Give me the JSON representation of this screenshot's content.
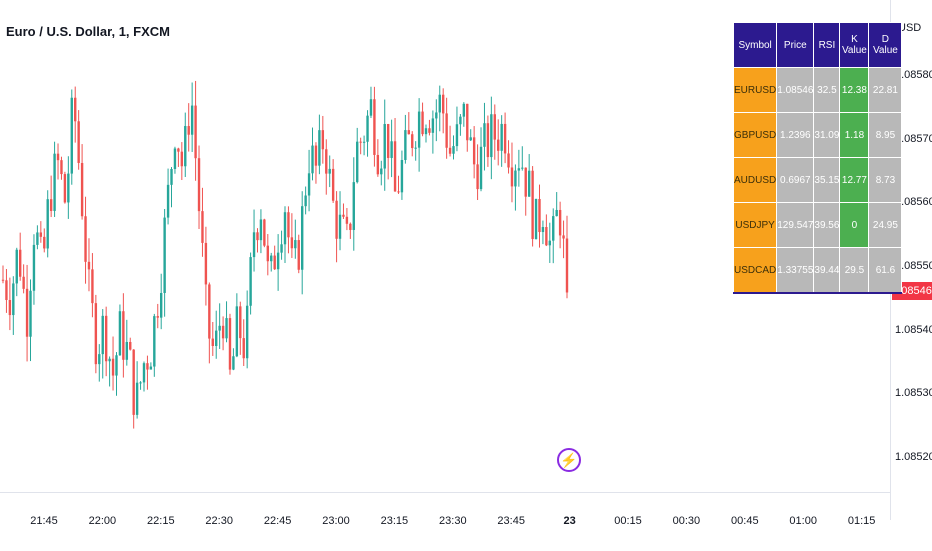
{
  "title": "Euro / U.S. Dollar, 1, FXCM",
  "colors": {
    "up": "#26a69a",
    "down": "#ef5350",
    "last_price": "#f23645",
    "table_header": "#2c1a8f",
    "symbol_cell": "#f7a11c",
    "value_cell": "#b8b8b8",
    "k_highlight": "#4caf50"
  },
  "icons": {
    "flash": "lightning-bolt-icon"
  },
  "chart_data": {
    "type": "candlestick",
    "yaxis_unit": "USD",
    "ylim": [
      1.08515,
      1.08585
    ],
    "yticks": [
      "1.08580",
      "1.08570",
      "1.08560",
      "1.08550",
      "1.08540",
      "1.08530",
      "1.08520"
    ],
    "last_price": "1.08546",
    "xticks": [
      {
        "label": "21:45",
        "bold": false
      },
      {
        "label": "22:00",
        "bold": false
      },
      {
        "label": "22:15",
        "bold": false
      },
      {
        "label": "22:30",
        "bold": false
      },
      {
        "label": "22:45",
        "bold": false
      },
      {
        "label": "23:00",
        "bold": false
      },
      {
        "label": "23:15",
        "bold": false
      },
      {
        "label": "23:30",
        "bold": false
      },
      {
        "label": "23:45",
        "bold": false
      },
      {
        "label": "23",
        "bold": true
      },
      {
        "label": "00:15",
        "bold": false
      },
      {
        "label": "00:30",
        "bold": false
      },
      {
        "label": "00:45",
        "bold": false
      },
      {
        "label": "01:00",
        "bold": false
      },
      {
        "label": "01:15",
        "bold": false
      }
    ],
    "close_path": [
      1.08548,
      1.08546,
      1.08553,
      1.08542,
      1.08557,
      1.08549,
      1.08562,
      1.08566,
      1.0856,
      1.08576,
      1.08562,
      1.08545,
      1.08538,
      1.08541,
      1.08533,
      1.0854,
      1.08536,
      1.08528,
      1.08535,
      1.08538,
      1.08548,
      1.0856,
      1.08573,
      1.08565,
      1.08578,
      1.0856,
      1.08541,
      1.08536,
      1.08544,
      1.08532,
      1.08541,
      1.08537,
      1.08556,
      1.0856,
      1.08546,
      1.08555,
      1.0856,
      1.08548,
      1.08555,
      1.08568,
      1.08565,
      1.08571,
      1.0856,
      1.08556,
      1.08553,
      1.08568,
      1.08571,
      1.08575,
      1.08568,
      1.08572,
      1.08561,
      1.08566,
      1.0857,
      1.08574,
      1.08575,
      1.08574,
      1.08576,
      1.08568,
      1.0857,
      1.08574,
      1.08566,
      1.08567,
      1.0857,
      1.08571,
      1.08572,
      1.08567,
      1.08568,
      1.08563,
      1.08556,
      1.0856,
      1.08552,
      1.0856,
      1.08546
    ],
    "candle_count": 165
  },
  "table": {
    "headers": [
      "Symbol",
      "Price",
      "RSI",
      "K Value",
      "D Value"
    ],
    "rows": [
      {
        "symbol": "EURUSD",
        "price": "1.08546",
        "rsi": "32.5",
        "k": "12.38",
        "d": "22.81",
        "k_green": true
      },
      {
        "symbol": "GBPUSD",
        "price": "1.2396",
        "rsi": "31.09",
        "k": "1.18",
        "d": "8.95",
        "k_green": true
      },
      {
        "symbol": "AUDUSD",
        "price": "0.6967",
        "rsi": "35.15",
        "k": "12.77",
        "d": "8.73",
        "k_green": true
      },
      {
        "symbol": "USDJPY",
        "price": "129.547",
        "rsi": "39.56",
        "k": "0",
        "d": "24.95",
        "k_green": true
      },
      {
        "symbol": "USDCAD",
        "price": "1.33755",
        "rsi": "39.44",
        "k": "29.5",
        "d": "61.6",
        "k_green": false
      }
    ]
  }
}
